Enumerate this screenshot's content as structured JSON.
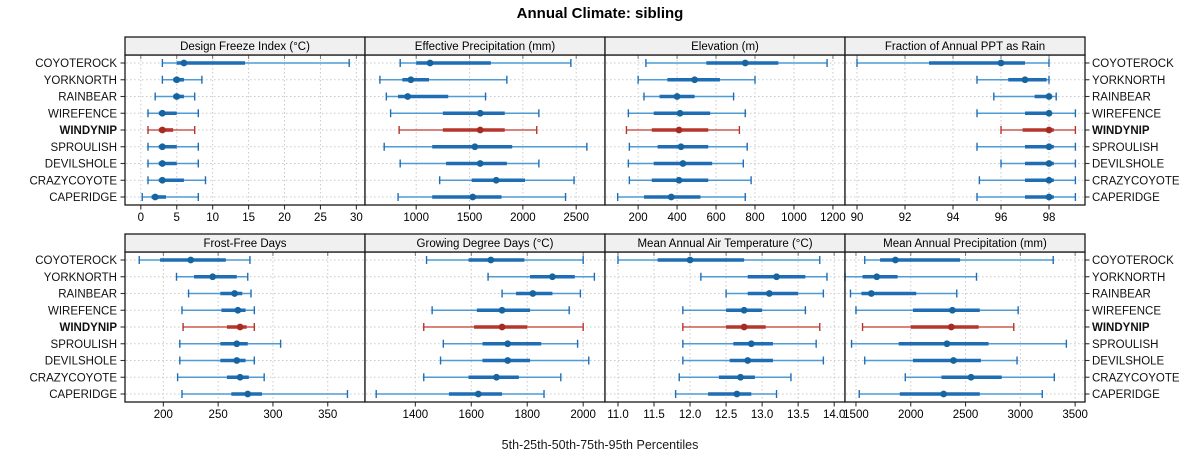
{
  "title": "Annual Climate: sibling",
  "xlabel": "5th-25th-50th-75th-95th Percentiles",
  "sites": [
    "COYOTEROCK",
    "YORKNORTH",
    "RAINBEAR",
    "WIREFENCE",
    "WINDYNIP",
    "SPROULISH",
    "DEVILSHOLE",
    "CRAZYCOYOTE",
    "CAPERIDGE"
  ],
  "highlight_site": "WINDYNIP",
  "colors": {
    "blue_whisker": "#4E9BD5",
    "blue_box": "#1F6EB5",
    "blue_dot": "#17659F",
    "red_whisker": "#CB5A50",
    "red_box": "#B5362C",
    "red_dot": "#A62B22",
    "strip_bg": "#F0F0F0",
    "panel_border": "#1A1A1A",
    "grid": "#C9C9C9",
    "tick": "#333333",
    "label_text": "#111111"
  },
  "chart_data": [
    {
      "type": "dotplot",
      "title": "Design Freeze Index (°C)",
      "xlim": [
        -2.2,
        31.2
      ],
      "ticks": [
        0,
        5,
        10,
        15,
        20,
        25,
        30
      ],
      "tick_labels": [
        "0",
        "5",
        "10",
        "15",
        "20",
        "25",
        "30"
      ],
      "series": [
        [
          3,
          5,
          6,
          14.5,
          29
        ],
        [
          3,
          4.5,
          5,
          6,
          8.5
        ],
        [
          2,
          4.5,
          5,
          6,
          7.5
        ],
        [
          1,
          2.5,
          3,
          5,
          8
        ],
        [
          1,
          2.5,
          3,
          4.5,
          7.5
        ],
        [
          1,
          2.5,
          3,
          5,
          8
        ],
        [
          1,
          2.5,
          3,
          5,
          8
        ],
        [
          1,
          2.5,
          3,
          6,
          9
        ],
        [
          0.2,
          1.5,
          2,
          3.5,
          8
        ]
      ]
    },
    {
      "type": "dotplot",
      "title": "Effective Precipitation (mm)",
      "xlim": [
        520,
        2770
      ],
      "ticks": [
        1000,
        1500,
        2000,
        2500
      ],
      "tick_labels": [
        "1000",
        "1500",
        "2000",
        "2500"
      ],
      "series": [
        [
          850,
          1000,
          1130,
          1700,
          2450
        ],
        [
          660,
          870,
          950,
          1120,
          1850
        ],
        [
          720,
          830,
          920,
          1300,
          1650
        ],
        [
          760,
          1250,
          1600,
          1830,
          2150
        ],
        [
          840,
          1250,
          1600,
          1830,
          2130
        ],
        [
          700,
          1150,
          1550,
          1900,
          2600
        ],
        [
          850,
          1280,
          1600,
          1850,
          2150
        ],
        [
          1220,
          1520,
          1750,
          2020,
          2480
        ],
        [
          830,
          1150,
          1530,
          1800,
          2400
        ]
      ]
    },
    {
      "type": "dotplot",
      "title": "Elevation (m)",
      "xlim": [
        30,
        1262
      ],
      "ticks": [
        200,
        400,
        600,
        800,
        1000,
        1200
      ],
      "tick_labels": [
        "200",
        "400",
        "600",
        "800",
        "1000",
        "1200"
      ],
      "series": [
        [
          240,
          550,
          750,
          920,
          1170
        ],
        [
          200,
          350,
          490,
          620,
          800
        ],
        [
          230,
          310,
          400,
          490,
          690
        ],
        [
          150,
          280,
          415,
          570,
          750
        ],
        [
          140,
          270,
          410,
          560,
          720
        ],
        [
          155,
          300,
          420,
          560,
          760
        ],
        [
          150,
          280,
          430,
          580,
          740
        ],
        [
          155,
          270,
          410,
          560,
          780
        ],
        [
          95,
          230,
          370,
          520,
          750
        ]
      ]
    },
    {
      "type": "dotplot",
      "title": "Fraction of Annual PPT as Rain",
      "xlim": [
        89.5,
        99.5
      ],
      "ticks": [
        90,
        92,
        94,
        96,
        98
      ],
      "tick_labels": [
        "90",
        "92",
        "94",
        "96",
        "98"
      ],
      "series": [
        [
          90,
          93,
          96,
          97,
          98
        ],
        [
          95,
          96.3,
          97,
          97.9,
          98
        ],
        [
          95.7,
          97.4,
          98,
          98.1,
          98.3
        ],
        [
          95,
          97,
          98,
          98.1,
          99.1
        ],
        [
          96,
          96.9,
          98,
          98.2,
          99.1
        ],
        [
          95,
          97,
          98,
          98.2,
          99.1
        ],
        [
          96,
          97,
          98,
          98.2,
          99.1
        ],
        [
          95.1,
          97,
          98,
          98.2,
          99.1
        ],
        [
          95,
          97,
          98,
          98.2,
          99.1
        ]
      ]
    },
    {
      "type": "dotplot",
      "title": "Frost-Free Days",
      "xlim": [
        165,
        384
      ],
      "ticks": [
        200,
        250,
        300,
        350
      ],
      "tick_labels": [
        "200",
        "250",
        "300",
        "350"
      ],
      "series": [
        [
          178,
          197,
          225,
          257,
          279
        ],
        [
          212,
          228,
          245,
          267,
          277
        ],
        [
          223,
          252,
          265,
          272,
          280
        ],
        [
          217,
          253,
          268,
          275,
          283
        ],
        [
          218,
          258,
          270,
          276,
          283
        ],
        [
          215,
          252,
          267,
          277,
          307
        ],
        [
          215,
          252,
          267,
          275,
          283
        ],
        [
          213,
          258,
          270,
          278,
          292
        ],
        [
          217,
          262,
          277,
          290,
          368
        ]
      ]
    },
    {
      "type": "dotplot",
      "title": "Growing Degree Days (°C)",
      "xlim": [
        1220,
        2078
      ],
      "ticks": [
        1400,
        1600,
        1800,
        2000
      ],
      "tick_labels": [
        "1400",
        "1600",
        "1800",
        "2000"
      ],
      "series": [
        [
          1440,
          1590,
          1670,
          1790,
          2000
        ],
        [
          1660,
          1810,
          1890,
          1970,
          2040
        ],
        [
          1710,
          1760,
          1820,
          1890,
          1990
        ],
        [
          1460,
          1620,
          1710,
          1810,
          1950
        ],
        [
          1430,
          1610,
          1710,
          1800,
          2000
        ],
        [
          1500,
          1640,
          1730,
          1850,
          1980
        ],
        [
          1490,
          1640,
          1730,
          1810,
          2020
        ],
        [
          1430,
          1590,
          1690,
          1770,
          1920
        ],
        [
          1260,
          1520,
          1625,
          1710,
          1860
        ]
      ]
    },
    {
      "type": "dotplot",
      "title": "Mean Annual Air Temperature (°C)",
      "xlim": [
        10.82,
        14.15
      ],
      "ticks": [
        11.0,
        11.5,
        12.0,
        12.5,
        13.0,
        13.5,
        14.0
      ],
      "tick_labels": [
        "11.0",
        "11.5",
        "12.0",
        "12.5",
        "13.0",
        "13.5",
        "14.0"
      ],
      "series": [
        [
          11.0,
          11.55,
          12.0,
          12.75,
          13.8
        ],
        [
          12.15,
          12.8,
          13.2,
          13.6,
          13.9
        ],
        [
          12.5,
          12.8,
          13.1,
          13.5,
          13.85
        ],
        [
          11.9,
          12.5,
          12.75,
          13.0,
          13.6
        ],
        [
          11.9,
          12.5,
          12.75,
          13.05,
          13.8
        ],
        [
          11.9,
          12.6,
          12.85,
          13.15,
          13.75
        ],
        [
          11.9,
          12.55,
          12.8,
          13.15,
          13.85
        ],
        [
          11.85,
          12.4,
          12.7,
          12.9,
          13.4
        ],
        [
          11.8,
          12.25,
          12.65,
          12.85,
          13.2
        ]
      ]
    },
    {
      "type": "dotplot",
      "title": "Mean Annual Precipitation (mm)",
      "xlim": [
        1400,
        3590
      ],
      "ticks": [
        1500,
        2000,
        2500,
        3000,
        3500
      ],
      "tick_labels": [
        "1500",
        "2000",
        "2500",
        "3000",
        "3500"
      ],
      "series": [
        [
          1580,
          1720,
          1860,
          2450,
          3300
        ],
        [
          1400,
          1560,
          1690,
          1880,
          2600
        ],
        [
          1450,
          1550,
          1640,
          2050,
          2420
        ],
        [
          1500,
          2020,
          2380,
          2630,
          2980
        ],
        [
          1560,
          2000,
          2370,
          2620,
          2940
        ],
        [
          1460,
          1890,
          2330,
          2710,
          3420
        ],
        [
          1580,
          2020,
          2390,
          2640,
          2970
        ],
        [
          1950,
          2280,
          2550,
          2830,
          3310
        ],
        [
          1530,
          1900,
          2300,
          2630,
          3200
        ]
      ]
    }
  ]
}
